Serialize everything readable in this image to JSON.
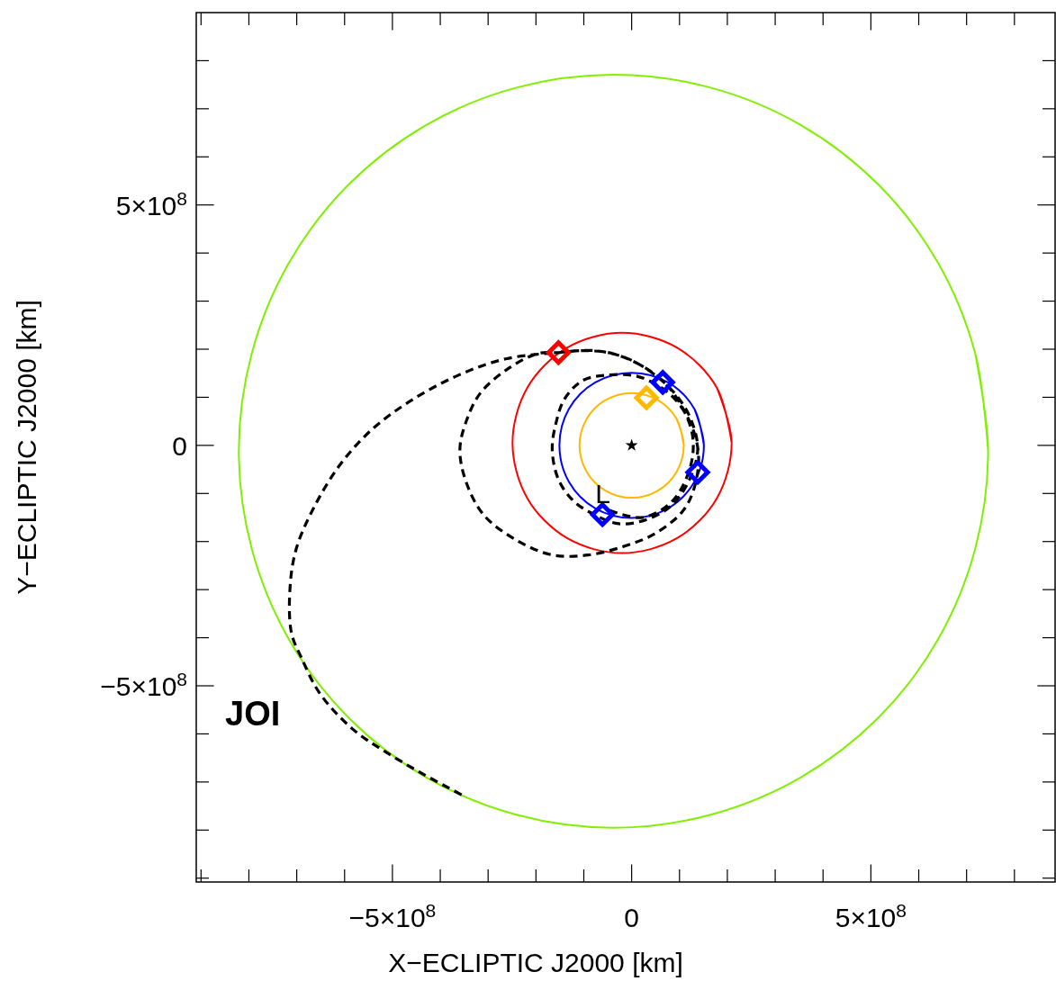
{
  "chart_data": {
    "type": "line",
    "xlabel": "X−ECLIPTIC J2000 [km]",
    "ylabel": "Y−ECLIPTIC J2000 [km]",
    "xlim": [
      -910000000.0,
      885000000.0
    ],
    "ylim": [
      -908000000.0,
      900000000.0
    ],
    "xticks": [
      {
        "value": -900000000.0,
        "label": null
      },
      {
        "value": -800000000.0,
        "label": null
      },
      {
        "value": -700000000.0,
        "label": null
      },
      {
        "value": -600000000.0,
        "label": null
      },
      {
        "value": -500000000.0,
        "label": "−5×10$^{8}$"
      },
      {
        "value": -400000000.0,
        "label": null
      },
      {
        "value": -300000000.0,
        "label": null
      },
      {
        "value": -200000000.0,
        "label": null
      },
      {
        "value": -100000000.0,
        "label": null
      },
      0,
      {
        "value": 100000000.0,
        "label": null
      },
      {
        "value": 200000000.0,
        "label": null
      },
      {
        "value": 300000000.0,
        "label": null
      },
      {
        "value": 400000000.0,
        "label": null
      },
      {
        "value": 500000000.0,
        "label": "5×10$^{8}$"
      },
      {
        "value": 600000000.0,
        "label": null
      },
      {
        "value": 700000000.0,
        "label": null
      },
      {
        "value": 800000000.0,
        "label": null
      }
    ],
    "yticks": [
      {
        "value": -900000000.0,
        "label": null
      },
      {
        "value": -800000000.0,
        "label": null
      },
      {
        "value": -700000000.0,
        "label": null
      },
      {
        "value": -600000000.0,
        "label": null
      },
      {
        "value": -500000000.0,
        "label": "−5×10$^{8}$"
      },
      {
        "value": -400000000.0,
        "label": null
      },
      {
        "value": -300000000.0,
        "label": null
      },
      {
        "value": -200000000.0,
        "label": null
      },
      {
        "value": -100000000.0,
        "label": null
      },
      0,
      {
        "value": 100000000.0,
        "label": null
      },
      {
        "value": 200000000.0,
        "label": null
      },
      {
        "value": 300000000.0,
        "label": null
      },
      {
        "value": 400000000.0,
        "label": null
      },
      {
        "value": 500000000.0,
        "label": "5×10$^{8}$"
      },
      {
        "value": 600000000.0,
        "label": null
      },
      {
        "value": 700000000.0,
        "label": null
      },
      {
        "value": 800000000.0,
        "label": null
      }
    ],
    "series": [
      {
        "color": "#80f000",
        "line_style": "solid",
        "marker": "none",
        "x": [
          745000000.0,
          718000000.0,
          640000000.0,
          516000000.0,
          354000000.0,
          165000000.0,
          -38000000.0,
          -241000000.0,
          -430000000.0,
          -592000000.0,
          -716000000.0,
          -794000000.0,
          -821000000.0,
          -794000000.0,
          -716000000.0,
          -592000000.0,
          -430000000.0,
          -241000000.0,
          -38000000.0,
          165000000.0,
          354000000.0,
          516000000.0,
          640000000.0,
          718000000.0
        ],
        "values": [
          -12000000.0,
          191000000.0,
          380000000.0,
          542000000.0,
          666000000.0,
          744000000.0,
          771000000.0,
          744000000.0,
          666000000.0,
          542000000.0,
          380000000.0,
          191000000.0,
          -12000000.0,
          -215000000.0,
          -404000000.0,
          -566000000.0,
          -690000000.0,
          -768000000.0,
          -795000000.0,
          -768000000.0,
          -690000000.0,
          -566000000.0,
          -404000000.0,
          -215000000.0
        ]
      },
      {
        "color": "#ff0000",
        "line_style": "solid",
        "marker": "none",
        "x": [
          209000000.0,
          178000000.0,
          95000000.0,
          -20000000.0,
          -135000000.0,
          -218000000.0,
          -249000000.0,
          -218000000.0,
          -135000000.0,
          -20000000.0,
          95000000.0,
          178000000.0
        ],
        "values": [
          5000000.0,
          120000000.0,
          203000000.0,
          234000000.0,
          203000000.0,
          120000000.0,
          5000000.0,
          -110000000.0,
          -193000000.0,
          -224000000.0,
          -193000000.0,
          -110000000.0
        ]
      },
      {
        "color": "#0000ff",
        "line_style": "solid",
        "marker": "none",
        "x": [
          151000000.0,
          131000000.0,
          76000000.0,
          0,
          -76000000.0,
          -131000000.0,
          -151000000.0,
          -131000000.0,
          -76000000.0,
          0,
          76000000.0,
          131000000.0
        ],
        "values": [
          0,
          76000000.0,
          131000000.0,
          151000000.0,
          131000000.0,
          76000000.0,
          0,
          -76000000.0,
          -131000000.0,
          -151000000.0,
          -131000000.0,
          -76000000.0
        ]
      },
      {
        "color": "#ffb800",
        "line_style": "solid",
        "marker": "none",
        "x": [
          109000000.0,
          94000000.0,
          55000000.0,
          0,
          -55000000.0,
          -94000000.0,
          -109000000.0,
          -94000000.0,
          -55000000.0,
          0,
          55000000.0,
          94000000.0
        ],
        "values": [
          0,
          55000000.0,
          94000000.0,
          109000000.0,
          94000000.0,
          55000000.0,
          0,
          -55000000.0,
          -94000000.0,
          -109000000.0,
          -94000000.0,
          -55000000.0
        ]
      },
      {
        "color": "#000000",
        "line_style": "dashed",
        "marker": "none",
        "x": [
          -46000000.0,
          22000000.0,
          85000000.0,
          122000000.0,
          128000000.0,
          110000000.0,
          72000000.0,
          22000000.0,
          -40000000.0,
          -102000000.0,
          -153000000.0,
          -196000000.0,
          -259000000.0,
          -316000000.0,
          -345000000.0,
          -359000000.0,
          -345000000.0,
          -308000000.0,
          -241000000.0,
          -166000000.0,
          -91000000.0,
          -16000000.0,
          48000000.0,
          104000000.0,
          128000000.0,
          140000000.0,
          128000000.0,
          96000000.0,
          59000000.0,
          10000000.0,
          -53000000.0,
          -102000000.0,
          -140000000.0,
          -158000000.0,
          -166000000.0,
          -153000000.0,
          -121000000.0,
          -78000000.0,
          -27000000.0,
          29000000.0,
          81000000.0,
          119000000.0,
          138000000.0,
          123000000.0,
          91000000.0,
          44000000.0,
          -12000000.0,
          -78000000.0,
          -153000000.0,
          -263000000.0,
          -362000000.0,
          -463000000.0,
          -544000000.0,
          -610000000.0,
          -664000000.0,
          -701000000.0,
          -714000000.0,
          -711000000.0,
          -690000000.0,
          -651000000.0,
          -583000000.0,
          -515000000.0,
          -435000000.0,
          -349000000.0
        ],
        "values": [
          -135000000.0,
          -150000000.0,
          -116000000.0,
          -47000000.0,
          15000000.0,
          71000000.0,
          127000000.0,
          165000000.0,
          191000000.0,
          197000000.0,
          193000000.0,
          191000000.0,
          159000000.0,
          109000000.0,
          52000000.0,
          -9000000.0,
          -79000000.0,
          -146000000.0,
          -197000000.0,
          -228000000.0,
          -228000000.0,
          -210000000.0,
          -184000000.0,
          -140000000.0,
          -97000000.0,
          -28000000.0,
          34000000.0,
          90000000.0,
          122000000.0,
          144000000.0,
          146000000.0,
          135000000.0,
          97000000.0,
          47000000.0,
          -9000000.0,
          -71000000.0,
          -116000000.0,
          -144000000.0,
          -163000000.0,
          -155000000.0,
          -127000000.0,
          -75000000.0,
          -9000000.0,
          56000000.0,
          107000000.0,
          150000000.0,
          182000000.0,
          197000000.0,
          193000000.0,
          180000000.0,
          146000000.0,
          92000000.0,
          32000000.0,
          -41000000.0,
          -129000000.0,
          -215000000.0,
          -296000000.0,
          -390000000.0,
          -442000000.0,
          -517000000.0,
          -590000000.0,
          -637000000.0,
          -684000000.0,
          -730000000.0
        ]
      },
      {
        "type": "scatter",
        "color": "#ff0000",
        "marker": "diamond",
        "x": [
          -153000000.0
        ],
        "values": [
          193000000.0
        ]
      },
      {
        "type": "scatter",
        "color": "#ffb800",
        "marker": "diamond",
        "x": [
          31000000.0
        ],
        "values": [
          99000000.0
        ]
      },
      {
        "type": "scatter",
        "color": "#0000ff",
        "marker": "diamond",
        "x": [
          65000000.0,
          138000000.0,
          -61000000.0
        ],
        "values": [
          131000000.0,
          -56000000.0,
          -144000000.0
        ]
      },
      {
        "type": "scatter",
        "color": "#000000",
        "marker": "star",
        "x": [
          0
        ],
        "values": [
          0
        ]
      }
    ],
    "annotations": [
      {
        "text": "L",
        "x": -46000000.0,
        "y": -135000000.0
      },
      "JOI"
    ]
  }
}
